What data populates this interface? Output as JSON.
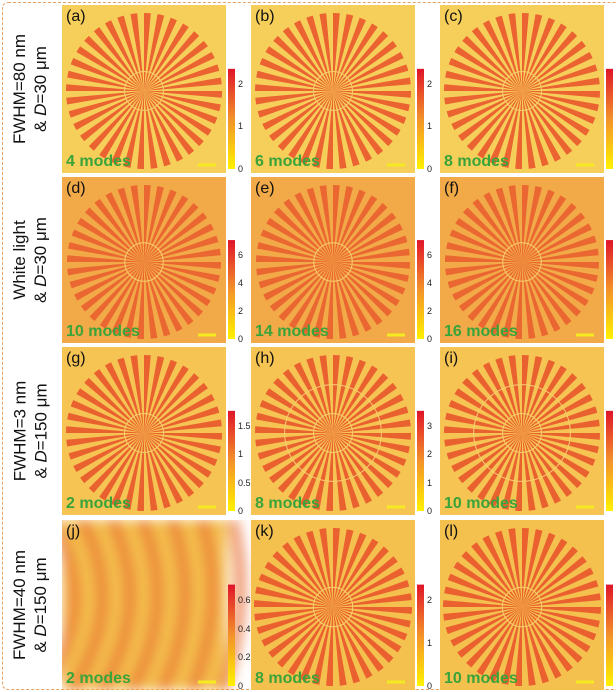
{
  "rows": [
    {
      "label": {
        "line1": "FWHM=80 nm",
        "line2_pre": "& ",
        "line2_var": "D",
        "line2_post": "=30 μm"
      },
      "panels": [
        {
          "tag": "(a)",
          "modes": "4 modes",
          "colorbar": [
            2,
            1,
            0
          ]
        },
        {
          "tag": "(b)",
          "modes": "6 modes",
          "colorbar": [
            2,
            1,
            0
          ]
        },
        {
          "tag": "(c)",
          "modes": "8 modes",
          "colorbar": []
        }
      ]
    },
    {
      "label": {
        "line1": "White light",
        "line2_pre": "& ",
        "line2_var": "D",
        "line2_post": "=30 μm"
      },
      "panels": [
        {
          "tag": "(d)",
          "modes": "10 modes",
          "colorbar": [
            6,
            4,
            2,
            0
          ]
        },
        {
          "tag": "(e)",
          "modes": "14 modes",
          "colorbar": [
            6,
            4,
            2,
            0
          ]
        },
        {
          "tag": "(f)",
          "modes": "16 modes",
          "colorbar": []
        }
      ]
    },
    {
      "label": {
        "line1": "FWHM=3 nm",
        "line2_pre": "& ",
        "line2_var": "D",
        "line2_post": "=150 μm"
      },
      "panels": [
        {
          "tag": "(g)",
          "modes": "2 modes",
          "colorbar": [
            1.5,
            1,
            0.5,
            0
          ]
        },
        {
          "tag": "(h)",
          "modes": "8 modes",
          "colorbar": [
            3,
            2,
            1,
            0
          ]
        },
        {
          "tag": "(i)",
          "modes": "10 modes",
          "colorbar": []
        }
      ]
    },
    {
      "label": {
        "line1": "FWHM=40 nm",
        "line2_pre": "& ",
        "line2_var": "D",
        "line2_post": "=150 μm"
      },
      "panels": [
        {
          "tag": "(j)",
          "modes": "2 modes",
          "colorbar": [
            0.6,
            0.4,
            0.2,
            0
          ]
        },
        {
          "tag": "(k)",
          "modes": "8 modes",
          "colorbar": [
            2,
            1,
            0
          ]
        },
        {
          "tag": "(l)",
          "modes": "10 modes",
          "colorbar": []
        }
      ]
    }
  ]
}
